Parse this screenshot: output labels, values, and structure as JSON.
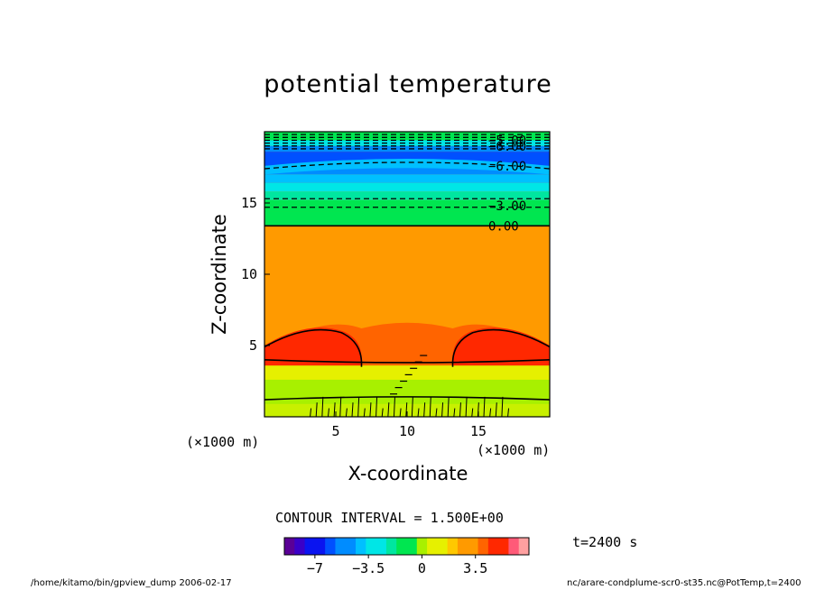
{
  "chart_data": {
    "type": "contour",
    "title": "potential temperature",
    "xlabel": "X-coordinate",
    "ylabel": "Z-coordinate",
    "x_unit": "(×1000 m)",
    "z_unit": "(×1000 m)",
    "xlim": [
      0,
      20
    ],
    "ylim": [
      0,
      20
    ],
    "x_ticks": [
      5,
      10,
      15
    ],
    "y_ticks": [
      5,
      10,
      15
    ],
    "contour_interval_text": "CONTOUR INTERVAL = 1.500E+00",
    "time_text": "t=2400 s",
    "colorbar": {
      "range": [
        -9,
        7
      ],
      "tick_values": [
        -7,
        -3.5,
        0,
        3.5
      ],
      "tick_labels": [
        "−7",
        "−3.5",
        "0",
        "3.5"
      ]
    },
    "contour_labels": [
      {
        "text": "−5.00",
        "z": 19.4
      },
      {
        "text": "−6.00",
        "z": 19.0
      },
      {
        "text": "−6.00",
        "z": 17.6
      },
      {
        "text": "−3.00",
        "z": 14.8
      },
      {
        "text": "0.00",
        "z": 13.4
      }
    ],
    "features": [
      {
        "name": "negative layer",
        "z_range": [
          13.4,
          20
        ],
        "level_min": -9,
        "level_max": -1
      },
      {
        "name": "neutral layer",
        "z_range": [
          4.5,
          13.4
        ],
        "level": 1.5
      },
      {
        "name": "warm plume left",
        "x_range": [
          0,
          7
        ],
        "z_range": [
          3.5,
          6.5
        ],
        "level": 4.5
      },
      {
        "name": "warm plume right",
        "x_range": [
          13,
          20
        ],
        "z_range": [
          3.5,
          6.5
        ],
        "level": 4.5
      },
      {
        "name": "lower layer",
        "z_range": [
          0,
          3.5
        ],
        "level": 0
      }
    ]
  },
  "footer": {
    "left": "/home/kitamo/bin/gpview_dump  2006-02-17",
    "right": "nc/arare-condplume-scr0-st35.nc@PotTemp,t=2400"
  }
}
